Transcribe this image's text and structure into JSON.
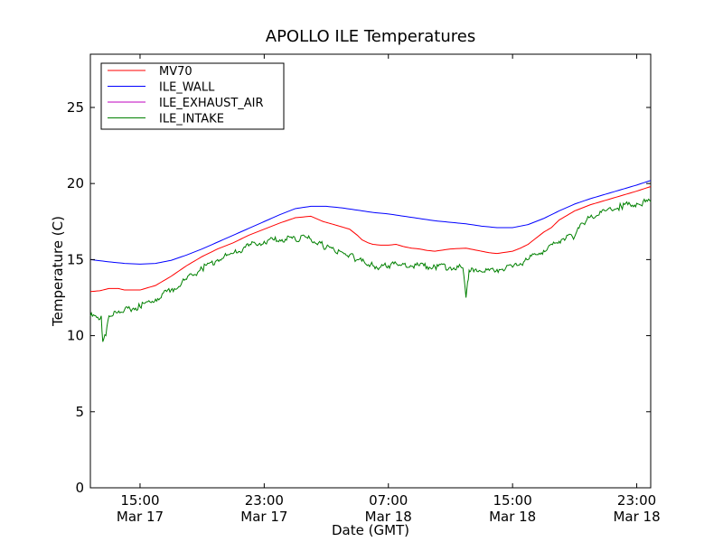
{
  "chart_data": {
    "type": "line",
    "title": "APOLLO ILE Temperatures",
    "xlabel": "Date (GMT)",
    "ylabel": "Temperature (C)",
    "ylim": [
      0,
      28.5
    ],
    "xlim_hours": [
      11.8,
      47.9
    ],
    "x_units": "hours since 00:00 GMT Mar 17",
    "grid": false,
    "legend_position": "top-left",
    "y_ticks": [
      0,
      5,
      10,
      15,
      20,
      25
    ],
    "x_ticks": [
      {
        "hour": 15,
        "line1": "15:00",
        "line2": "Mar 17"
      },
      {
        "hour": 23,
        "line1": "23:00",
        "line2": "Mar 17"
      },
      {
        "hour": 31,
        "line1": "07:00",
        "line2": "Mar 18"
      },
      {
        "hour": 39,
        "line1": "15:00",
        "line2": "Mar 18"
      },
      {
        "hour": 47,
        "line1": "23:00",
        "line2": "Mar 18"
      }
    ],
    "series": [
      {
        "name": "MV70",
        "color": "#ff0000",
        "x": [
          11.8,
          12.4,
          13.0,
          13.6,
          14.0,
          15.0,
          16.0,
          17.0,
          18.0,
          19.0,
          20.0,
          21.0,
          22.0,
          23.0,
          24.0,
          25.0,
          26.0,
          26.8,
          27.5,
          28.0,
          28.5,
          29.0,
          29.3,
          29.7,
          30.0,
          30.5,
          31.0,
          31.5,
          32.0,
          32.5,
          33.0,
          33.5,
          34.0,
          35.0,
          36.0,
          36.5,
          37.0,
          37.5,
          38.0,
          39.0,
          39.5,
          40.0,
          40.5,
          41.0,
          41.5,
          42.0,
          43.0,
          44.0,
          45.0,
          46.0,
          47.0,
          47.9
        ],
        "y": [
          12.9,
          12.95,
          13.1,
          13.1,
          13.0,
          13.0,
          13.3,
          13.9,
          14.6,
          15.2,
          15.7,
          16.1,
          16.6,
          17.0,
          17.4,
          17.75,
          17.85,
          17.5,
          17.3,
          17.15,
          17.0,
          16.6,
          16.3,
          16.1,
          16.0,
          15.95,
          15.95,
          16.0,
          15.85,
          15.75,
          15.7,
          15.6,
          15.55,
          15.7,
          15.75,
          15.65,
          15.55,
          15.45,
          15.4,
          15.55,
          15.75,
          16.0,
          16.4,
          16.8,
          17.1,
          17.6,
          18.2,
          18.6,
          18.9,
          19.2,
          19.5,
          19.8
        ]
      },
      {
        "name": "ILE_WALL",
        "color": "#0000ff",
        "x": [
          11.8,
          13.0,
          14.0,
          15.0,
          16.0,
          17.0,
          18.0,
          19.0,
          20.0,
          21.0,
          22.0,
          23.0,
          24.0,
          25.0,
          26.0,
          27.0,
          28.0,
          29.0,
          30.0,
          31.0,
          32.0,
          33.0,
          34.0,
          35.0,
          36.0,
          37.0,
          38.0,
          39.0,
          40.0,
          41.0,
          42.0,
          43.0,
          44.0,
          45.0,
          46.0,
          47.0,
          47.9
        ],
        "y": [
          15.0,
          14.85,
          14.75,
          14.7,
          14.75,
          14.95,
          15.3,
          15.7,
          16.15,
          16.6,
          17.05,
          17.5,
          17.95,
          18.35,
          18.5,
          18.5,
          18.4,
          18.25,
          18.1,
          18.0,
          17.85,
          17.7,
          17.55,
          17.45,
          17.35,
          17.2,
          17.1,
          17.1,
          17.3,
          17.7,
          18.2,
          18.65,
          19.0,
          19.3,
          19.6,
          19.9,
          20.2
        ]
      },
      {
        "name": "ILE_EXHAUST_AIR",
        "color": "#bf00bf",
        "x": [],
        "y": []
      },
      {
        "name": "ILE_INTAKE",
        "color": "#008000",
        "x": [
          11.8,
          12.2,
          12.5,
          12.6,
          12.8,
          13.0,
          13.4,
          14.0,
          15.0,
          16.0,
          17.0,
          18.0,
          19.0,
          20.0,
          21.0,
          22.0,
          23.0,
          24.0,
          24.8,
          25.3,
          25.6,
          26.0,
          26.5,
          27.0,
          27.5,
          28.0,
          28.5,
          29.0,
          29.5,
          30.0,
          30.5,
          31.0,
          31.5,
          32.0,
          33.0,
          34.0,
          35.0,
          35.8,
          36.0,
          36.1,
          36.2,
          36.3,
          36.5,
          37.0,
          38.0,
          39.0,
          40.0,
          41.0,
          42.0,
          42.5,
          43.0,
          43.5,
          44.0,
          45.0,
          46.0,
          47.0,
          47.9
        ],
        "y": [
          11.3,
          11.2,
          11.3,
          9.6,
          10.0,
          11.3,
          11.6,
          11.7,
          11.9,
          12.4,
          13.0,
          13.7,
          14.4,
          15.0,
          15.4,
          15.9,
          16.2,
          16.3,
          16.4,
          16.3,
          16.55,
          16.35,
          16.1,
          15.8,
          15.65,
          15.5,
          15.3,
          15.0,
          14.75,
          14.6,
          14.5,
          14.6,
          14.75,
          14.7,
          14.6,
          14.55,
          14.5,
          14.45,
          12.5,
          13.5,
          14.3,
          14.25,
          14.2,
          14.2,
          14.35,
          14.5,
          15.0,
          15.6,
          16.2,
          16.6,
          16.5,
          17.4,
          17.8,
          18.2,
          18.5,
          18.7,
          18.8
        ]
      }
    ]
  }
}
